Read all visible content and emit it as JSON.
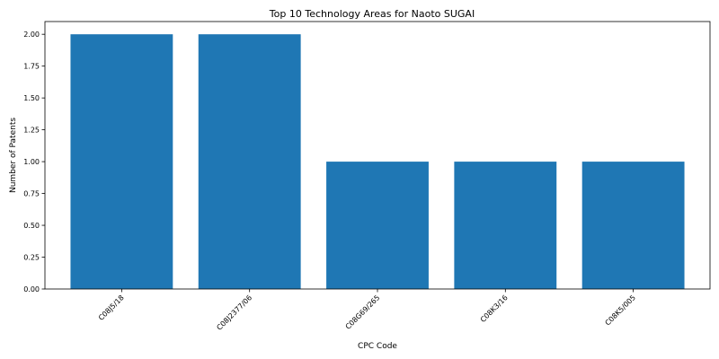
{
  "chart_data": {
    "type": "bar",
    "title": "Top 10 Technology Areas for Naoto SUGAI",
    "xlabel": "CPC Code",
    "ylabel": "Number of Patents",
    "categories": [
      "C08J5/18",
      "C08J2377/06",
      "C08G69/265",
      "C08K3/16",
      "C08K5/005"
    ],
    "values": [
      2,
      2,
      1,
      1,
      1
    ],
    "ylim": [
      0,
      2.1
    ],
    "yticks": [
      "0.00",
      "0.25",
      "0.50",
      "0.75",
      "1.00",
      "1.25",
      "1.50",
      "1.75",
      "2.00"
    ],
    "grid": false,
    "bar_color": "#1f77b4"
  }
}
